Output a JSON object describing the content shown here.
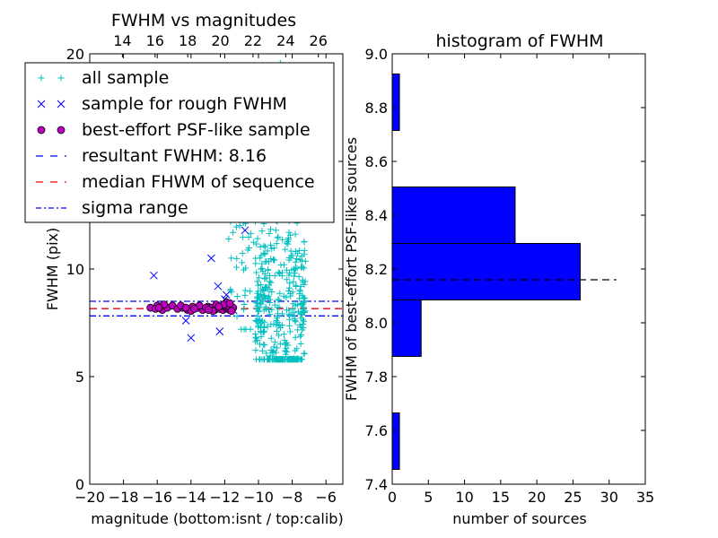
{
  "chart_data": [
    {
      "type": "scatter",
      "title": "FWHM vs magnitudes",
      "xlabel": "magnitude (bottom:isnt / top:calib)",
      "ylabel": "FWHM (pix)",
      "xlim": [
        -20,
        -5
      ],
      "ylim": [
        0,
        20
      ],
      "xticks": [
        -20,
        -18,
        -16,
        -14,
        -12,
        -10,
        -8,
        -6
      ],
      "xtick_labels": [
        "−20",
        "−18",
        "−16",
        "−14",
        "−12",
        "−10",
        "−8",
        "−6"
      ],
      "yticks": [
        0,
        5,
        10,
        15,
        20
      ],
      "ytick_labels": [
        "0",
        "5",
        "10",
        "15",
        "20"
      ],
      "top_xlim": [
        12,
        27.5
      ],
      "top_xticks": [
        14,
        16,
        18,
        20,
        22,
        24,
        26
      ],
      "top_xtick_labels": [
        "14",
        "16",
        "18",
        "20",
        "22",
        "24",
        "26"
      ],
      "legend": {
        "placement": "upper-left",
        "entries": [
          {
            "label": "all sample",
            "marker": "plus",
            "color": "#00bfbf"
          },
          {
            "label": "sample for rough FWHM",
            "marker": "x",
            "color": "#0000ff"
          },
          {
            "label": "best-effort PSF-like sample",
            "marker": "circle",
            "color": "#bf00bf"
          },
          {
            "label": "resultant FWHM: 8.16",
            "marker": "dashed-line",
            "color": "#0000ff"
          },
          {
            "label": "median FHWM of sequence",
            "marker": "dashed-line",
            "color": "#ff0000"
          },
          {
            "label": "sigma range",
            "marker": "dashdot-line",
            "color": "#0000ff"
          }
        ]
      },
      "series": [
        {
          "name": "sample for rough FWHM",
          "marker": "x",
          "color": "#0000ff",
          "points": [
            [
              -16.2,
              9.7
            ],
            [
              -14.3,
              7.6
            ],
            [
              -14.0,
              6.8
            ],
            [
              -12.8,
              10.5
            ],
            [
              -12.4,
              9.2
            ],
            [
              -12.3,
              7.1
            ],
            [
              -12.0,
              8.6
            ],
            [
              -11.9,
              8.8
            ],
            [
              -12.5,
              14.1
            ],
            [
              -12.2,
              13.4
            ],
            [
              -11.6,
              12.9
            ],
            [
              -11.3,
              14.6
            ],
            [
              -11.0,
              13.0
            ],
            [
              -10.8,
              11.8
            ],
            [
              -11.8,
              8.4
            ],
            [
              -11.5,
              8.1
            ]
          ]
        },
        {
          "name": "best-effort PSF-like sample",
          "marker": "circle",
          "color": "#bf00bf",
          "points": [
            [
              -16.4,
              8.2
            ],
            [
              -16.0,
              8.3
            ],
            [
              -15.7,
              8.1
            ],
            [
              -15.4,
              8.2
            ],
            [
              -15.1,
              8.3
            ],
            [
              -14.8,
              8.15
            ],
            [
              -14.5,
              8.2
            ],
            [
              -14.2,
              8.1
            ],
            [
              -13.9,
              8.25
            ],
            [
              -13.6,
              8.2
            ],
            [
              -13.3,
              8.1
            ],
            [
              -13.0,
              8.25
            ],
            [
              -12.8,
              8.2
            ],
            [
              -12.6,
              8.1
            ],
            [
              -12.4,
              8.3
            ],
            [
              -12.3,
              8.15
            ],
            [
              -12.2,
              8.2
            ],
            [
              -12.1,
              8.1
            ],
            [
              -12.0,
              8.25
            ],
            [
              -11.9,
              8.2
            ],
            [
              -11.8,
              8.15
            ],
            [
              -11.75,
              8.3
            ],
            [
              -11.7,
              8.1
            ],
            [
              -11.65,
              8.2
            ],
            [
              -11.6,
              8.25
            ],
            [
              -11.55,
              8.15
            ],
            [
              -11.5,
              8.2
            ],
            [
              -11.9,
              8.45
            ],
            [
              -12.5,
              8.35
            ],
            [
              -14.0,
              8.05
            ],
            [
              -15.6,
              8.35
            ],
            [
              -13.5,
              8.3
            ],
            [
              -16.1,
              8.15
            ],
            [
              -14.6,
              8.3
            ],
            [
              -13.1,
              8.2
            ],
            [
              -12.7,
              8.05
            ],
            [
              -11.85,
              8.3
            ],
            [
              -11.6,
              8.05
            ],
            [
              -12.05,
              8.35
            ],
            [
              -13.8,
              8.15
            ],
            [
              -12.35,
              8.25
            ],
            [
              -11.7,
              8.4
            ],
            [
              -15.9,
              8.2
            ],
            [
              -14.3,
              8.2
            ],
            [
              -12.95,
              8.1
            ]
          ]
        }
      ],
      "reference_lines": [
        {
          "name": "resultant FWHM: 8.16",
          "y": 8.16,
          "style": "dashed",
          "color": "#0000ff"
        },
        {
          "name": "median FHWM of sequence",
          "y": 8.16,
          "style": "dashed",
          "color": "#ff0000"
        },
        {
          "name": "sigma range",
          "y": 8.5,
          "style": "dashdot",
          "color": "#0000ff"
        },
        {
          "name": "sigma range",
          "y": 7.82,
          "style": "dashdot",
          "color": "#0000ff"
        }
      ]
    },
    {
      "type": "bar",
      "orientation": "horizontal",
      "title": "histogram of FWHM",
      "xlabel": "number of sources",
      "ylabel": "FWHM of best-effort PSF-like sources",
      "xlim": [
        0,
        35
      ],
      "ylim": [
        7.4,
        9.0
      ],
      "xticks": [
        0,
        5,
        10,
        15,
        20,
        25,
        30,
        35
      ],
      "yticks": [
        7.4,
        7.6,
        7.8,
        8.0,
        8.2,
        8.4,
        8.6,
        8.8,
        9.0
      ],
      "ytick_labels": [
        "7.4",
        "7.6",
        "7.8",
        "8.0",
        "8.2",
        "8.4",
        "8.6",
        "8.8",
        "9.0"
      ],
      "color": "#0000ff",
      "bins": [
        {
          "y0": 7.455,
          "y1": 7.665,
          "count": 1
        },
        {
          "y0": 7.665,
          "y1": 7.875,
          "count": 0
        },
        {
          "y0": 7.875,
          "y1": 8.085,
          "count": 4
        },
        {
          "y0": 8.085,
          "y1": 8.295,
          "count": 26
        },
        {
          "y0": 8.295,
          "y1": 8.505,
          "count": 17
        },
        {
          "y0": 8.505,
          "y1": 8.715,
          "count": 0
        },
        {
          "y0": 8.715,
          "y1": 8.925,
          "count": 1
        }
      ],
      "reference_line": {
        "y": 8.16,
        "x_range": [
          0,
          31
        ],
        "style": "dashed",
        "color": "#000000"
      }
    }
  ]
}
